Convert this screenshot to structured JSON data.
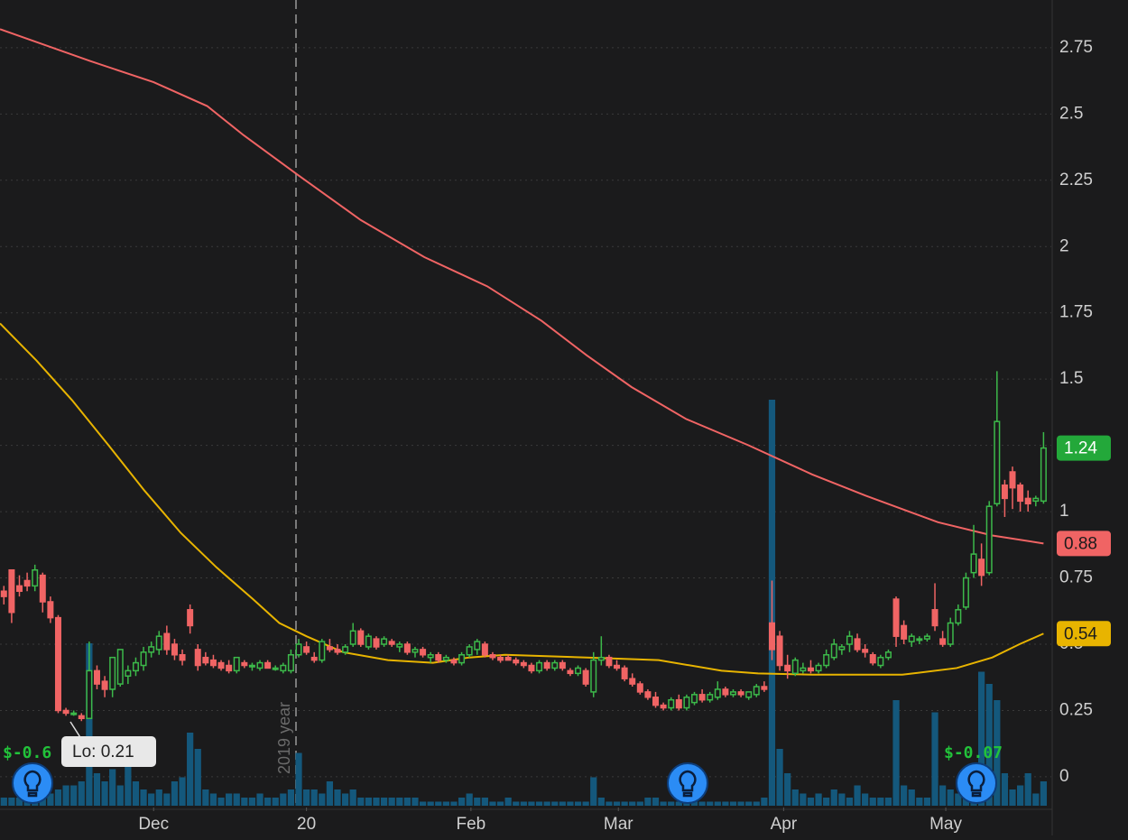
{
  "chart_data": {
    "type": "candlestick",
    "xlim": [
      -0.5,
      135
    ],
    "ylim": [
      -0.116,
      2.93
    ],
    "yticks": [
      0,
      0.25,
      0.5,
      0.75,
      1,
      1.25,
      1.5,
      1.75,
      2,
      2.25,
      2.5,
      2.75
    ],
    "xticks": [
      {
        "value": 19.3,
        "label": "Dec"
      },
      {
        "value": 39,
        "label": "20"
      },
      {
        "value": 60.2,
        "label": "Feb"
      },
      {
        "value": 79.2,
        "label": "Mar"
      },
      {
        "value": 100.5,
        "label": "Apr"
      },
      {
        "value": 121.4,
        "label": "May"
      }
    ],
    "grid": true,
    "up_color": "#3cb94a",
    "down_color": "#f06464",
    "last": 1.24,
    "year_label": "2019 year",
    "low_label": "Lo: 0.21",
    "earnings_labels": [
      "$-0.6",
      "$-0.07"
    ],
    "candles": [
      [
        0.7,
        0.72,
        0.65,
        0.68
      ],
      [
        0.78,
        0.78,
        0.58,
        0.62
      ],
      [
        0.72,
        0.76,
        0.68,
        0.7
      ],
      [
        0.74,
        0.77,
        0.7,
        0.72
      ],
      [
        0.72,
        0.8,
        0.7,
        0.78
      ],
      [
        0.76,
        0.77,
        0.62,
        0.66
      ],
      [
        0.66,
        0.68,
        0.58,
        0.6
      ],
      [
        0.6,
        0.61,
        0.24,
        0.25
      ],
      [
        0.25,
        0.26,
        0.23,
        0.24
      ],
      [
        0.24,
        0.25,
        0.23,
        0.24
      ],
      [
        0.23,
        0.24,
        0.21,
        0.22
      ],
      [
        0.22,
        0.51,
        0.22,
        0.4
      ],
      [
        0.4,
        0.42,
        0.33,
        0.35
      ],
      [
        0.36,
        0.38,
        0.3,
        0.33
      ],
      [
        0.33,
        0.45,
        0.3,
        0.45
      ],
      [
        0.35,
        0.48,
        0.34,
        0.48
      ],
      [
        0.38,
        0.42,
        0.35,
        0.4
      ],
      [
        0.4,
        0.45,
        0.38,
        0.43
      ],
      [
        0.42,
        0.49,
        0.4,
        0.47
      ],
      [
        0.47,
        0.51,
        0.45,
        0.49
      ],
      [
        0.48,
        0.55,
        0.46,
        0.53
      ],
      [
        0.54,
        0.57,
        0.46,
        0.48
      ],
      [
        0.5,
        0.52,
        0.44,
        0.46
      ],
      [
        0.46,
        0.48,
        0.42,
        0.44
      ],
      [
        0.63,
        0.65,
        0.54,
        0.57
      ],
      [
        0.48,
        0.5,
        0.4,
        0.42
      ],
      [
        0.45,
        0.47,
        0.42,
        0.43
      ],
      [
        0.44,
        0.46,
        0.41,
        0.42
      ],
      [
        0.43,
        0.44,
        0.4,
        0.41
      ],
      [
        0.42,
        0.44,
        0.39,
        0.4
      ],
      [
        0.4,
        0.45,
        0.39,
        0.45
      ],
      [
        0.43,
        0.44,
        0.41,
        0.42
      ],
      [
        0.42,
        0.43,
        0.4,
        0.42
      ],
      [
        0.41,
        0.44,
        0.4,
        0.43
      ],
      [
        0.43,
        0.44,
        0.41,
        0.41
      ],
      [
        0.41,
        0.42,
        0.4,
        0.41
      ],
      [
        0.4,
        0.43,
        0.39,
        0.42
      ],
      [
        0.4,
        0.48,
        0.39,
        0.46
      ],
      [
        0.46,
        0.52,
        0.45,
        0.5
      ],
      [
        0.49,
        0.51,
        0.46,
        0.47
      ],
      [
        0.45,
        0.47,
        0.43,
        0.44
      ],
      [
        0.44,
        0.52,
        0.43,
        0.51
      ],
      [
        0.49,
        0.52,
        0.47,
        0.48
      ],
      [
        0.48,
        0.5,
        0.46,
        0.47
      ],
      [
        0.47,
        0.5,
        0.46,
        0.49
      ],
      [
        0.5,
        0.58,
        0.49,
        0.55
      ],
      [
        0.55,
        0.56,
        0.49,
        0.5
      ],
      [
        0.49,
        0.54,
        0.48,
        0.53
      ],
      [
        0.52,
        0.53,
        0.48,
        0.49
      ],
      [
        0.5,
        0.53,
        0.49,
        0.52
      ],
      [
        0.51,
        0.52,
        0.49,
        0.5
      ],
      [
        0.49,
        0.51,
        0.47,
        0.5
      ],
      [
        0.5,
        0.51,
        0.46,
        0.47
      ],
      [
        0.47,
        0.49,
        0.45,
        0.48
      ],
      [
        0.48,
        0.49,
        0.45,
        0.46
      ],
      [
        0.45,
        0.47,
        0.43,
        0.46
      ],
      [
        0.46,
        0.47,
        0.43,
        0.44
      ],
      [
        0.44,
        0.46,
        0.43,
        0.45
      ],
      [
        0.44,
        0.45,
        0.42,
        0.43
      ],
      [
        0.43,
        0.47,
        0.42,
        0.46
      ],
      [
        0.46,
        0.5,
        0.45,
        0.49
      ],
      [
        0.48,
        0.52,
        0.46,
        0.51
      ],
      [
        0.5,
        0.51,
        0.45,
        0.46
      ],
      [
        0.46,
        0.47,
        0.44,
        0.45
      ],
      [
        0.45,
        0.46,
        0.43,
        0.44
      ],
      [
        0.45,
        0.46,
        0.44,
        0.44
      ],
      [
        0.44,
        0.45,
        0.42,
        0.43
      ],
      [
        0.43,
        0.44,
        0.41,
        0.42
      ],
      [
        0.42,
        0.43,
        0.39,
        0.4
      ],
      [
        0.4,
        0.44,
        0.39,
        0.43
      ],
      [
        0.43,
        0.44,
        0.4,
        0.41
      ],
      [
        0.41,
        0.44,
        0.4,
        0.43
      ],
      [
        0.43,
        0.44,
        0.4,
        0.41
      ],
      [
        0.4,
        0.41,
        0.38,
        0.39
      ],
      [
        0.39,
        0.42,
        0.38,
        0.41
      ],
      [
        0.4,
        0.41,
        0.34,
        0.35
      ],
      [
        0.32,
        0.47,
        0.3,
        0.44
      ],
      [
        0.44,
        0.53,
        0.42,
        0.45
      ],
      [
        0.45,
        0.46,
        0.41,
        0.42
      ],
      [
        0.42,
        0.44,
        0.4,
        0.41
      ],
      [
        0.41,
        0.42,
        0.36,
        0.37
      ],
      [
        0.37,
        0.39,
        0.34,
        0.35
      ],
      [
        0.35,
        0.36,
        0.31,
        0.32
      ],
      [
        0.32,
        0.33,
        0.29,
        0.3
      ],
      [
        0.3,
        0.32,
        0.26,
        0.27
      ],
      [
        0.27,
        0.28,
        0.25,
        0.26
      ],
      [
        0.26,
        0.3,
        0.25,
        0.29
      ],
      [
        0.29,
        0.31,
        0.25,
        0.26
      ],
      [
        0.26,
        0.31,
        0.25,
        0.3
      ],
      [
        0.28,
        0.32,
        0.27,
        0.31
      ],
      [
        0.31,
        0.33,
        0.28,
        0.29
      ],
      [
        0.29,
        0.32,
        0.28,
        0.31
      ],
      [
        0.3,
        0.36,
        0.29,
        0.33
      ],
      [
        0.33,
        0.34,
        0.3,
        0.31
      ],
      [
        0.31,
        0.33,
        0.3,
        0.32
      ],
      [
        0.32,
        0.33,
        0.3,
        0.31
      ],
      [
        0.3,
        0.32,
        0.29,
        0.32
      ],
      [
        0.31,
        0.35,
        0.3,
        0.34
      ],
      [
        0.34,
        0.36,
        0.32,
        0.33
      ],
      [
        0.58,
        0.74,
        0.44,
        0.48
      ],
      [
        0.53,
        0.55,
        0.4,
        0.42
      ],
      [
        0.42,
        0.46,
        0.37,
        0.4
      ],
      [
        0.39,
        0.45,
        0.38,
        0.44
      ],
      [
        0.4,
        0.43,
        0.39,
        0.41
      ],
      [
        0.41,
        0.44,
        0.39,
        0.4
      ],
      [
        0.4,
        0.43,
        0.39,
        0.42
      ],
      [
        0.42,
        0.48,
        0.41,
        0.46
      ],
      [
        0.45,
        0.52,
        0.44,
        0.5
      ],
      [
        0.48,
        0.5,
        0.46,
        0.49
      ],
      [
        0.5,
        0.55,
        0.47,
        0.53
      ],
      [
        0.52,
        0.54,
        0.47,
        0.48
      ],
      [
        0.48,
        0.5,
        0.45,
        0.47
      ],
      [
        0.46,
        0.47,
        0.42,
        0.43
      ],
      [
        0.42,
        0.46,
        0.41,
        0.45
      ],
      [
        0.45,
        0.48,
        0.44,
        0.47
      ],
      [
        0.67,
        0.68,
        0.49,
        0.53
      ],
      [
        0.57,
        0.59,
        0.5,
        0.52
      ],
      [
        0.51,
        0.54,
        0.49,
        0.53
      ],
      [
        0.52,
        0.53,
        0.5,
        0.52
      ],
      [
        0.52,
        0.54,
        0.51,
        0.53
      ],
      [
        0.63,
        0.73,
        0.55,
        0.57
      ],
      [
        0.52,
        0.55,
        0.49,
        0.5
      ],
      [
        0.5,
        0.6,
        0.49,
        0.58
      ],
      [
        0.58,
        0.65,
        0.57,
        0.63
      ],
      [
        0.64,
        0.77,
        0.63,
        0.75
      ],
      [
        0.77,
        0.95,
        0.75,
        0.84
      ],
      [
        0.82,
        0.88,
        0.72,
        0.76
      ],
      [
        0.77,
        1.04,
        0.76,
        1.02
      ],
      [
        1.03,
        1.53,
        1.02,
        1.34
      ],
      [
        1.1,
        1.12,
        0.98,
        1.05
      ],
      [
        1.15,
        1.17,
        1.01,
        1.09
      ],
      [
        1.1,
        1.11,
        1.0,
        1.04
      ],
      [
        1.05,
        1.08,
        1.0,
        1.03
      ],
      [
        1.04,
        1.06,
        1.02,
        1.05
      ],
      [
        1.04,
        1.3,
        1.03,
        1.24
      ]
    ],
    "volume": {
      "color": "#14587c",
      "vlim": [
        0,
        100
      ],
      "values": [
        2,
        2,
        2,
        3,
        2,
        2,
        3,
        4,
        5,
        5,
        6,
        40,
        8,
        6,
        9,
        5,
        16,
        6,
        4,
        3,
        4,
        3,
        6,
        7,
        18,
        14,
        4,
        3,
        2,
        3,
        3,
        2,
        2,
        3,
        2,
        2,
        3,
        4,
        13,
        4,
        4,
        3,
        6,
        4,
        3,
        4,
        2,
        2,
        2,
        2,
        2,
        2,
        2,
        2,
        1,
        1,
        1,
        1,
        1,
        2,
        3,
        2,
        2,
        1,
        1,
        2,
        1,
        1,
        1,
        1,
        1,
        1,
        1,
        1,
        1,
        1,
        7,
        2,
        1,
        1,
        1,
        1,
        1,
        2,
        2,
        1,
        1,
        1,
        1,
        1,
        1,
        1,
        1,
        1,
        1,
        1,
        1,
        1,
        2,
        100,
        14,
        8,
        4,
        3,
        2,
        3,
        2,
        4,
        3,
        2,
        5,
        3,
        2,
        2,
        2,
        26,
        5,
        4,
        2,
        2,
        23,
        5,
        4,
        3,
        4,
        5,
        33,
        30,
        26,
        8,
        4,
        5,
        8,
        3,
        6
      ]
    },
    "moving_averages": [
      {
        "color": "#f06464",
        "last": 0.88,
        "x": [
          -0.5,
          11.1,
          19.3,
          26.2,
          30.9,
          37.9,
          46,
          54.2,
          62.3,
          69.3,
          75.1,
          80.9,
          87.9,
          96,
          104.2,
          111.1,
          120.4,
          127.4,
          134
        ],
        "values": [
          2.82,
          2.7,
          2.62,
          2.53,
          2.42,
          2.27,
          2.1,
          1.96,
          1.85,
          1.72,
          1.59,
          1.47,
          1.35,
          1.25,
          1.14,
          1.06,
          0.96,
          0.91,
          0.88
        ]
      },
      {
        "color": "#e8b400",
        "last": 0.54,
        "x": [
          -0.5,
          4.2,
          8.8,
          13.5,
          18.1,
          22.8,
          27.4,
          32.1,
          35.5,
          39,
          43.7,
          49.5,
          55.3,
          60,
          64.6,
          75.1,
          84.4,
          92.5,
          97.2,
          104.2,
          115.8,
          122.8,
          127.4,
          130.9,
          134
        ],
        "values": [
          1.71,
          1.57,
          1.42,
          1.25,
          1.08,
          0.92,
          0.79,
          0.67,
          0.58,
          0.53,
          0.47,
          0.44,
          0.43,
          0.45,
          0.46,
          0.45,
          0.44,
          0.4,
          0.39,
          0.385,
          0.385,
          0.41,
          0.45,
          0.5,
          0.54
        ]
      }
    ]
  }
}
